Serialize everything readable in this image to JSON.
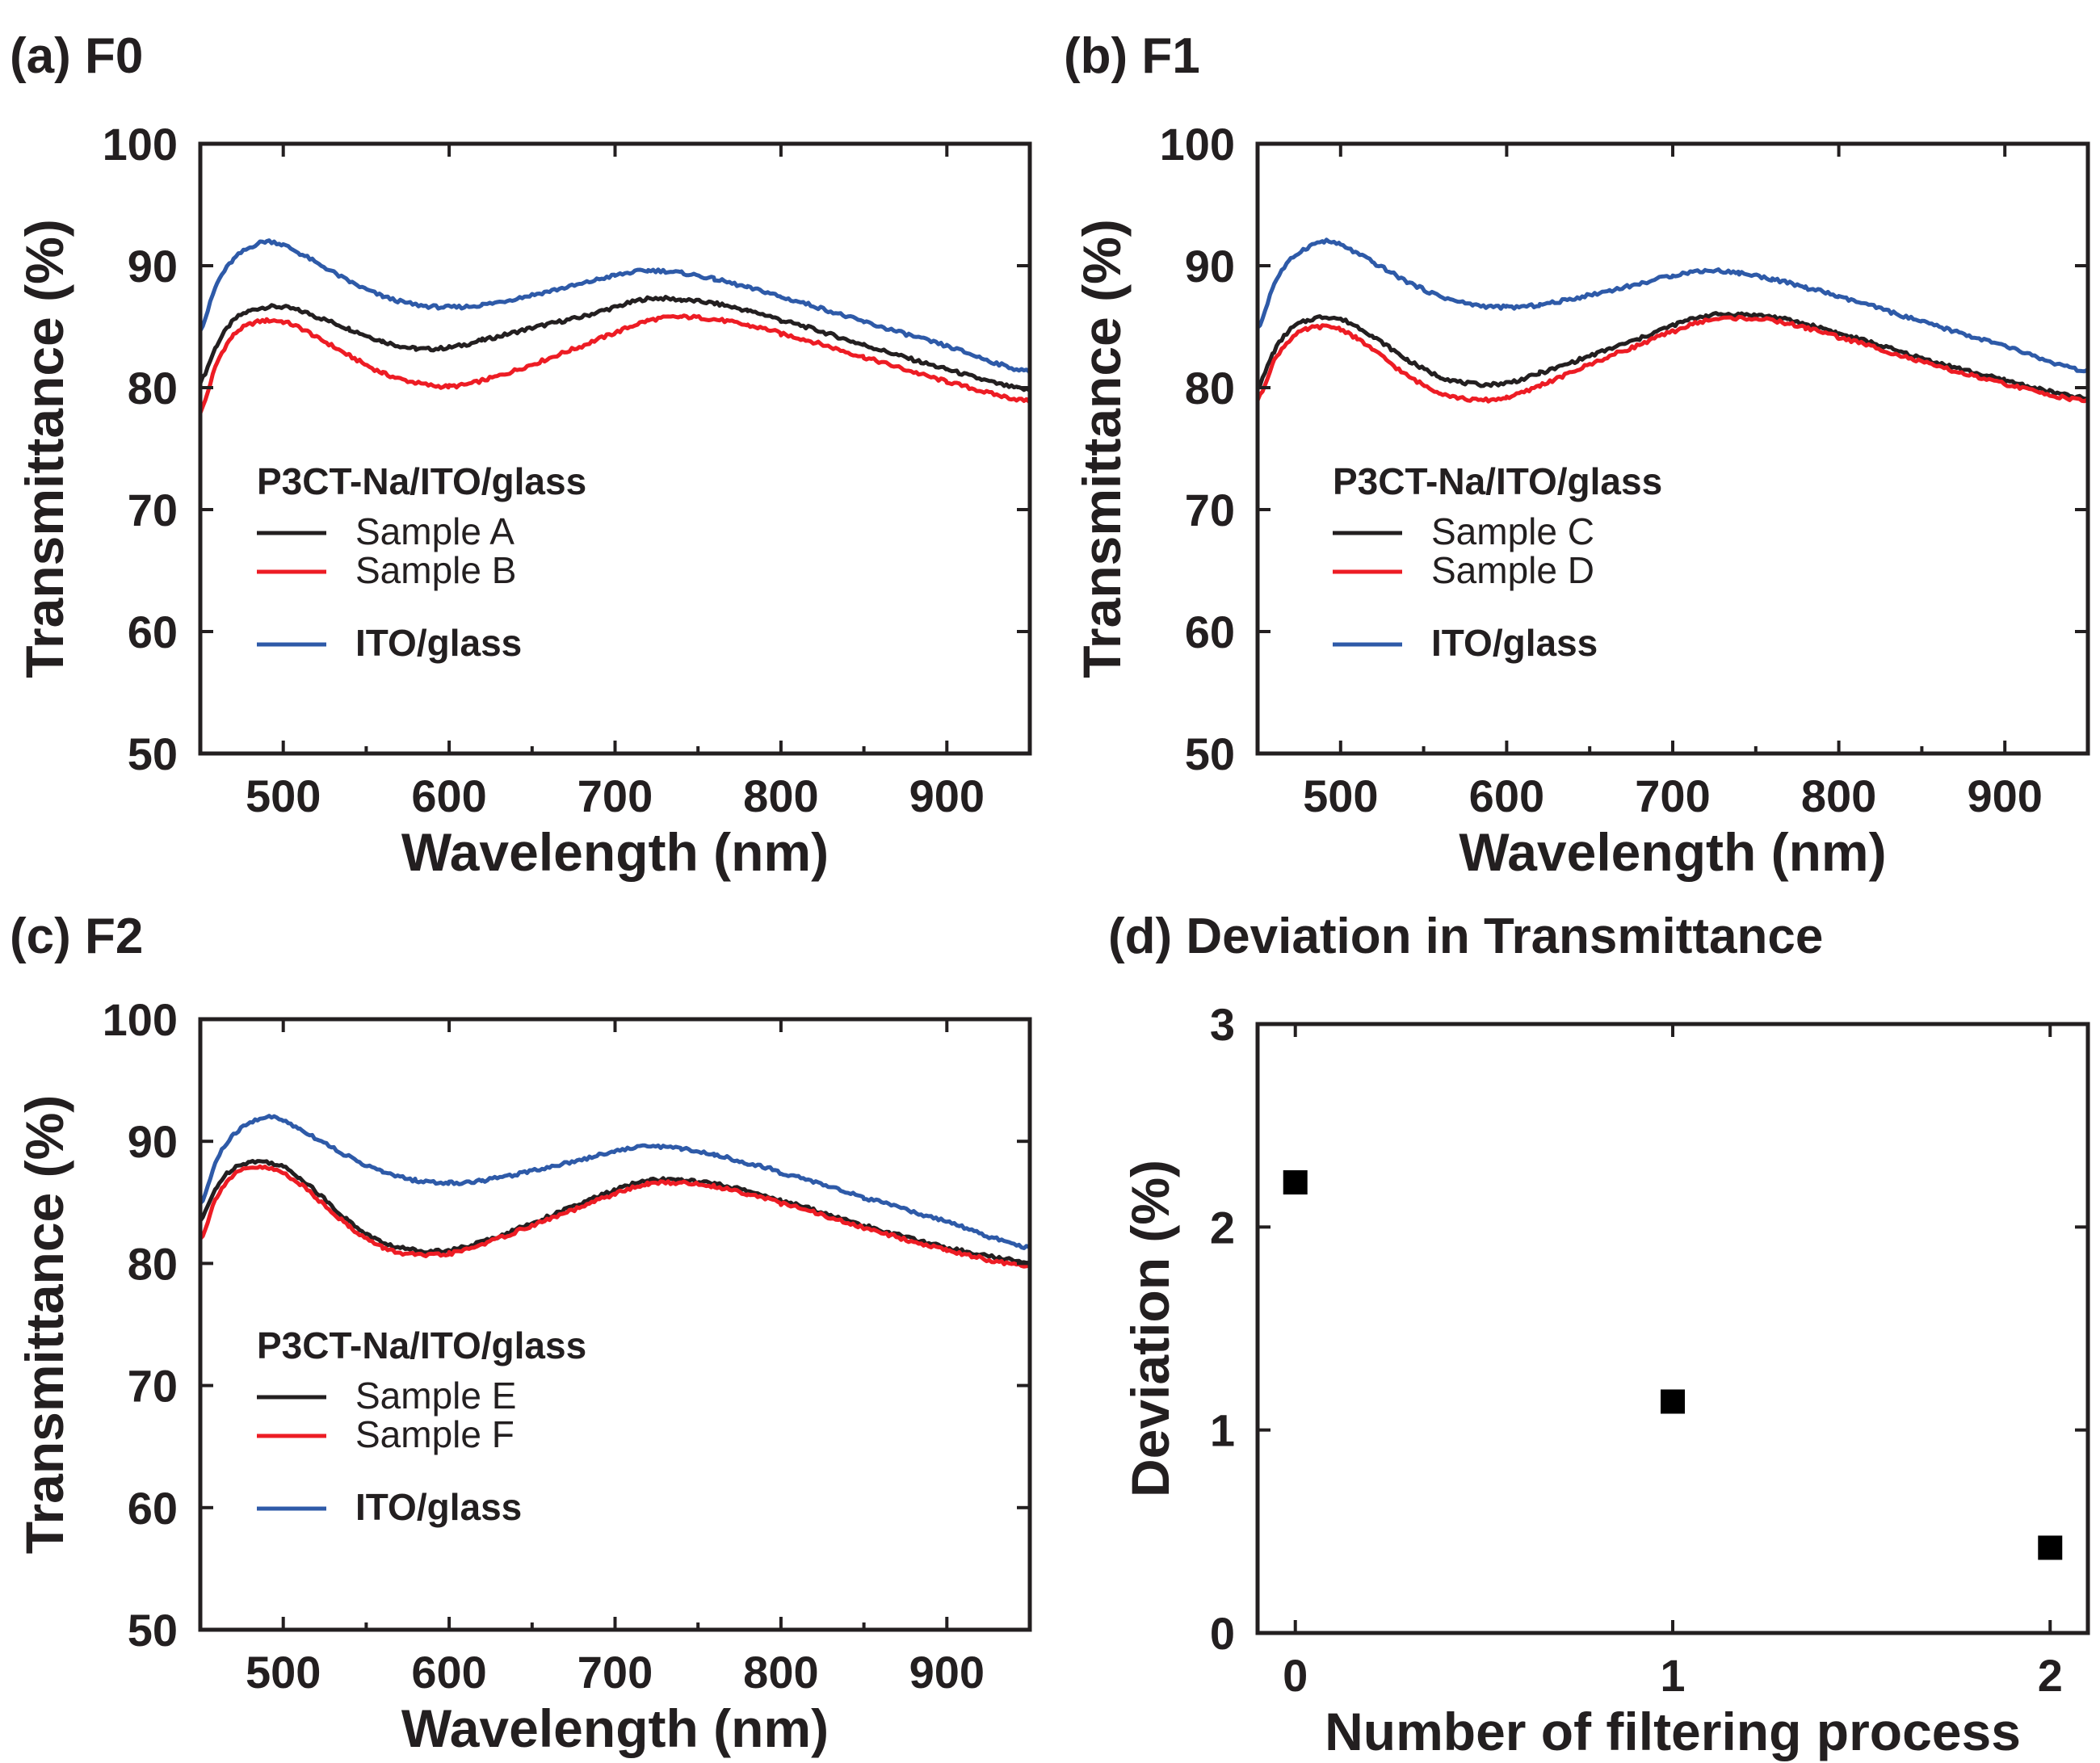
{
  "chart_data": [
    {
      "id": "a",
      "type": "line",
      "title": "(a) F0",
      "xlabel": "Wavelength (nm)",
      "ylabel": "Transmittance (%)",
      "xlim": [
        450,
        950
      ],
      "ylim": [
        50,
        100
      ],
      "xticks": [
        500,
        600,
        700,
        800,
        900
      ],
      "yticks": [
        50,
        60,
        70,
        80,
        90,
        100
      ],
      "legend_title": "P3CT-Na/ITO/glass",
      "x": [
        450,
        460,
        470,
        480,
        490,
        500,
        510,
        520,
        540,
        560,
        580,
        600,
        620,
        650,
        680,
        700,
        720,
        740,
        760,
        780,
        800,
        850,
        900,
        950
      ],
      "series": [
        {
          "name": "Sample A",
          "color": "#231f20",
          "values": [
            80.5,
            83.5,
            85.5,
            86.3,
            86.6,
            86.6,
            86.3,
            85.8,
            84.8,
            83.8,
            83.2,
            83.3,
            83.9,
            84.9,
            85.8,
            86.6,
            87.3,
            87.2,
            86.9,
            86.3,
            85.5,
            83.5,
            81.5,
            79.8
          ]
        },
        {
          "name": "Sample B",
          "color": "#ed1c24",
          "values": [
            78,
            82,
            84.3,
            85.2,
            85.5,
            85.4,
            84.9,
            84.1,
            82.6,
            81.2,
            80.4,
            80.1,
            80.6,
            81.9,
            83.4,
            84.5,
            85.5,
            85.8,
            85.6,
            85.1,
            84.4,
            82.5,
            80.5,
            78.9
          ]
        },
        {
          "name": "ITO/glass",
          "color": "#2e5aa8",
          "values": [
            84.8,
            88.5,
            90.5,
            91.5,
            92,
            91.7,
            91,
            90.2,
            88.7,
            87.5,
            86.8,
            86.6,
            86.8,
            87.6,
            88.5,
            89.2,
            89.6,
            89.4,
            88.9,
            88.2,
            87.4,
            85.4,
            83.4,
            81.3
          ]
        }
      ]
    },
    {
      "id": "b",
      "type": "line",
      "title": "(b) F1",
      "xlabel": "Wavelength (nm)",
      "ylabel": "Transmittance (%)",
      "xlim": [
        450,
        950
      ],
      "ylim": [
        50,
        100
      ],
      "xticks": [
        500,
        600,
        700,
        800,
        900
      ],
      "yticks": [
        50,
        60,
        70,
        80,
        90,
        100
      ],
      "legend_title": "P3CT-Na/ITO/glass",
      "x": [
        450,
        460,
        470,
        480,
        490,
        500,
        510,
        520,
        540,
        560,
        580,
        600,
        620,
        650,
        680,
        700,
        720,
        740,
        760,
        780,
        800,
        850,
        900,
        950
      ],
      "series": [
        {
          "name": "Sample C",
          "color": "#231f20",
          "values": [
            80,
            83,
            84.8,
            85.5,
            85.8,
            85.6,
            85,
            84.1,
            82.3,
            80.9,
            80.3,
            80.4,
            81.2,
            82.6,
            84,
            85.1,
            85.9,
            86,
            85.8,
            85.2,
            84.4,
            82.4,
            80.6,
            79.1
          ]
        },
        {
          "name": "Sample D",
          "color": "#ed1c24",
          "values": [
            79,
            82.2,
            84,
            84.8,
            85,
            84.8,
            84,
            83,
            81,
            79.6,
            79,
            79.2,
            80.2,
            81.9,
            83.5,
            84.6,
            85.5,
            85.7,
            85.5,
            84.9,
            84.1,
            82.1,
            80.3,
            78.9
          ]
        },
        {
          "name": "ITO/glass",
          "color": "#2e5aa8",
          "values": [
            84.8,
            88.5,
            90.5,
            91.5,
            92,
            91.7,
            91,
            90.2,
            88.7,
            87.5,
            86.8,
            86.6,
            86.8,
            87.6,
            88.5,
            89.2,
            89.6,
            89.4,
            88.9,
            88.2,
            87.4,
            85.4,
            83.4,
            81.3
          ]
        }
      ]
    },
    {
      "id": "c",
      "type": "line",
      "title": "(c) F2",
      "xlabel": "Wavelength (nm)",
      "ylabel": "Transmittance (%)",
      "xlim": [
        450,
        950
      ],
      "ylim": [
        50,
        100
      ],
      "xticks": [
        500,
        600,
        700,
        800,
        900
      ],
      "yticks": [
        50,
        60,
        70,
        80,
        90,
        100
      ],
      "legend_title": "P3CT-Na/ITO/glass",
      "x": [
        450,
        460,
        470,
        480,
        490,
        500,
        510,
        520,
        540,
        560,
        580,
        600,
        620,
        650,
        680,
        700,
        720,
        740,
        760,
        780,
        800,
        850,
        900,
        950
      ],
      "series": [
        {
          "name": "Sample E",
          "color": "#231f20",
          "values": [
            83.5,
            86.3,
            87.8,
            88.3,
            88.3,
            87.9,
            87,
            85.8,
            83.4,
            81.7,
            81.1,
            81.1,
            81.8,
            83.3,
            84.9,
            86,
            86.8,
            86.8,
            86.5,
            85.9,
            85.1,
            83.1,
            81.3,
            80.1
          ]
        },
        {
          "name": "Sample F",
          "color": "#ed1c24",
          "values": [
            82,
            85.5,
            87.2,
            87.8,
            87.8,
            87.4,
            86.5,
            85.3,
            83,
            81.3,
            80.7,
            80.8,
            81.6,
            83.1,
            84.6,
            85.7,
            86.5,
            86.6,
            86.3,
            85.7,
            84.9,
            82.9,
            81.1,
            79.7
          ]
        },
        {
          "name": "ITO/glass",
          "color": "#2e5aa8",
          "values": [
            84.8,
            88.5,
            90.5,
            91.5,
            92,
            91.7,
            91,
            90.2,
            88.7,
            87.5,
            86.8,
            86.6,
            86.8,
            87.6,
            88.5,
            89.2,
            89.6,
            89.4,
            88.9,
            88.2,
            87.4,
            85.4,
            83.4,
            81.3
          ]
        }
      ]
    },
    {
      "id": "d",
      "type": "scatter",
      "title": "(d) Deviation in Transmittance",
      "xlabel": "Number of filtering process",
      "ylabel": "Deviation (%)",
      "xlim": [
        -0.1,
        2.1
      ],
      "ylim": [
        0,
        3
      ],
      "xticks": [
        0,
        1,
        2
      ],
      "yticks": [
        0,
        1,
        2,
        3
      ],
      "series": [
        {
          "name": "Deviation",
          "color": "#000000",
          "x": [
            0,
            1,
            2
          ],
          "values": [
            2.22,
            1.14,
            0.42
          ]
        }
      ]
    }
  ]
}
